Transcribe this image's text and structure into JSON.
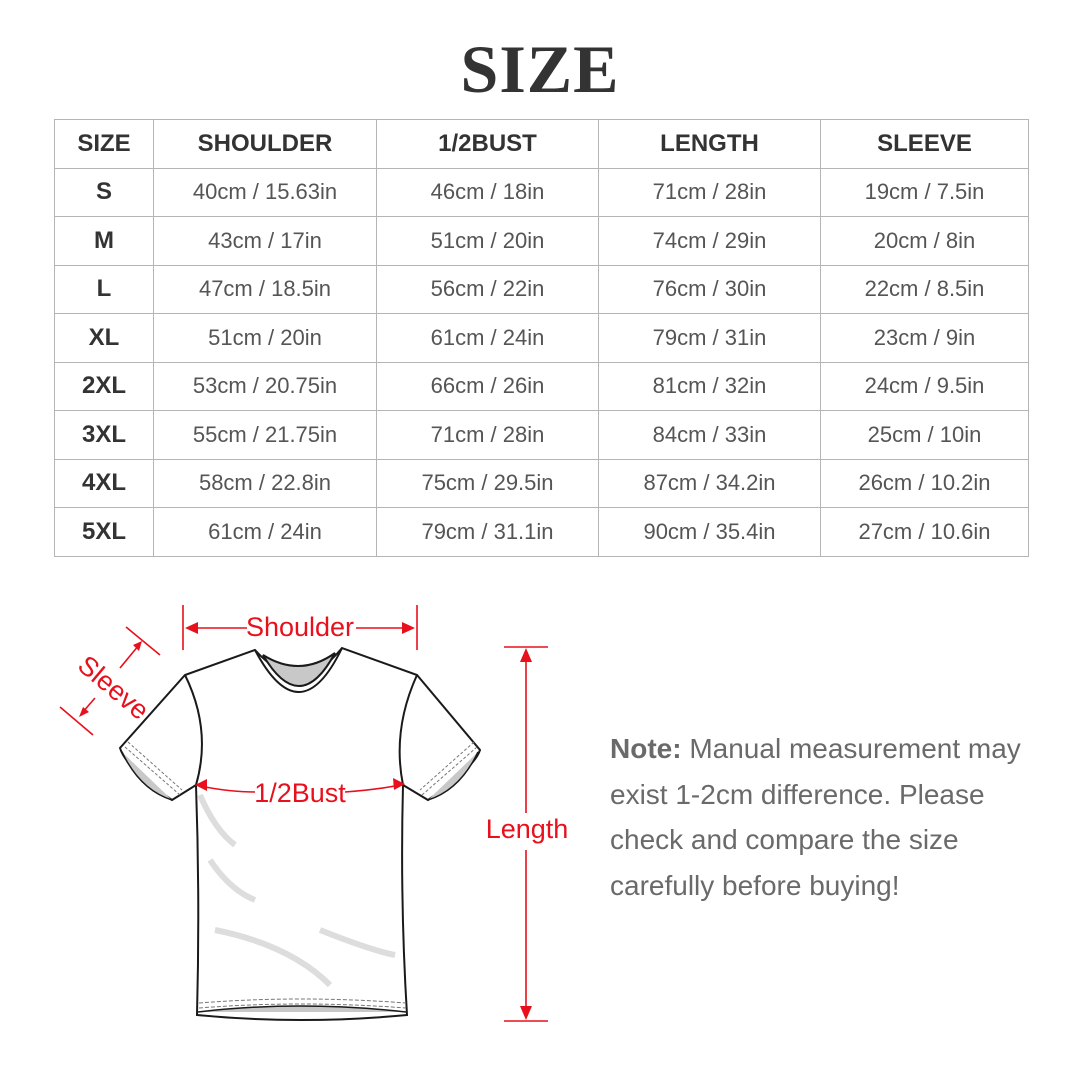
{
  "title": "SIZE",
  "table": {
    "headers": [
      "SIZE",
      "SHOULDER",
      "1/2BUST",
      "LENGTH",
      "SLEEVE"
    ],
    "rows": [
      [
        "S",
        "40cm / 15.63in",
        "46cm / 18in",
        "71cm / 28in",
        "19cm / 7.5in"
      ],
      [
        "M",
        "43cm / 17in",
        "51cm / 20in",
        "74cm / 29in",
        "20cm / 8in"
      ],
      [
        "L",
        "47cm / 18.5in",
        "56cm / 22in",
        "76cm / 30in",
        "22cm / 8.5in"
      ],
      [
        "XL",
        "51cm / 20in",
        "61cm / 24in",
        "79cm / 31in",
        "23cm / 9in"
      ],
      [
        "2XL",
        "53cm / 20.75in",
        "66cm / 26in",
        "81cm / 32in",
        "24cm / 9.5in"
      ],
      [
        "3XL",
        "55cm / 21.75in",
        "71cm / 28in",
        "84cm / 33in",
        "25cm / 10in"
      ],
      [
        "4XL",
        "58cm / 22.8in",
        "75cm / 29.5in",
        "87cm / 34.2in",
        "26cm / 10.2in"
      ],
      [
        "5XL",
        "61cm / 24in",
        "79cm / 31.1in",
        "90cm / 35.4in",
        "27cm / 10.6in"
      ]
    ]
  },
  "diagram": {
    "shoulder_label": "Shoulder",
    "sleeve_label": "Sleeve",
    "bust_label": "1/2Bust",
    "length_label": "Length",
    "accent_color": "#e8101c"
  },
  "note": {
    "label": "Note:",
    "text": " Manual measurement may exist 1-2cm difference. Please check and compare the size carefully before buying!"
  }
}
